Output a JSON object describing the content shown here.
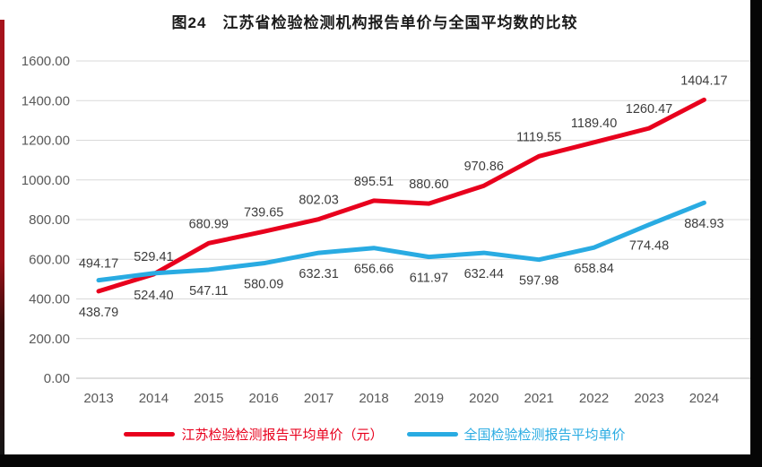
{
  "page": {
    "title": "图24　江苏省检验检测机构报告单价与全国平均数的比较"
  },
  "chart_data": {
    "type": "line",
    "figure_label": "图24",
    "title": "江苏省检验检测机构报告单价与全国平均数的比较",
    "categories": [
      "2013",
      "2014",
      "2015",
      "2016",
      "2017",
      "2018",
      "2019",
      "2020",
      "2021",
      "2022",
      "2023",
      "2024"
    ],
    "series": [
      {
        "name": "江苏检验检测报告平均单价（元）",
        "color": "#e8001d",
        "values": [
          438.79,
          524.4,
          680.99,
          739.65,
          802.03,
          895.51,
          880.6,
          970.86,
          1119.55,
          1189.4,
          1260.47,
          1404.17
        ]
      },
      {
        "name": "全国检验检测报告平均单价",
        "color": "#29abe2",
        "values": [
          494.17,
          529.41,
          547.11,
          580.09,
          632.31,
          656.66,
          611.97,
          632.44,
          597.98,
          658.84,
          774.48,
          884.93
        ]
      }
    ],
    "ylim": [
      0,
      1600
    ],
    "ytick_step": 200,
    "ytick_labels": [
      "0.00",
      "200.00",
      "400.00",
      "600.00",
      "800.00",
      "1000.00",
      "1200.00",
      "1400.00",
      "1600.00"
    ],
    "grid": "horizontal",
    "legend_position": "bottom",
    "data_labels": true
  }
}
